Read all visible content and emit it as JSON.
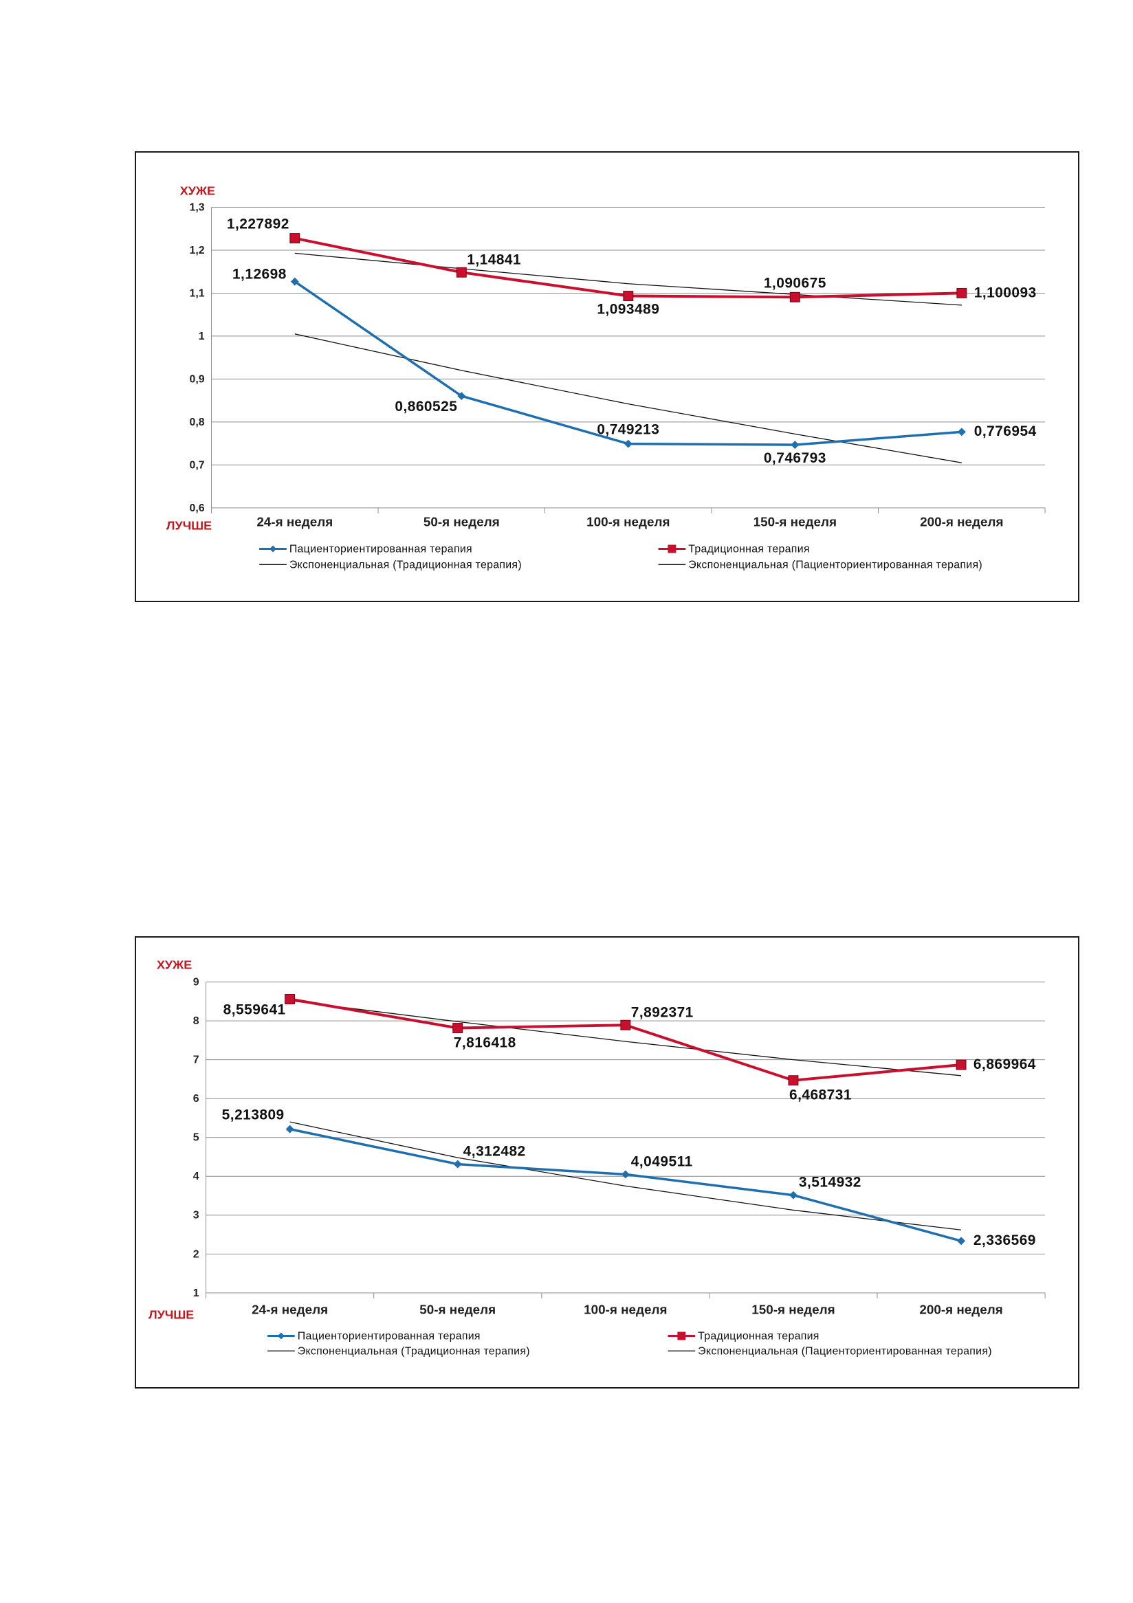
{
  "colors": {
    "patient": "#1f6fae",
    "traditional": "#c8102e",
    "trend": "#111111",
    "grid": "#8c8c8c",
    "worse_better": "#c0181e"
  },
  "chart_data": [
    {
      "type": "line",
      "title": "",
      "xlabel": "",
      "ylabel": "",
      "y_top_label": "ХУЖЕ",
      "y_bottom_label": "ЛУЧШЕ",
      "categories": [
        "24-я неделя",
        "50-я неделя",
        "100-я неделя",
        "150-я неделя",
        "200-я неделя"
      ],
      "ylim": [
        0.6,
        1.3
      ],
      "y_ticks": [
        0.6,
        0.7,
        0.8,
        0.9,
        1,
        1.1,
        1.2,
        1.3
      ],
      "y_tick_labels": [
        "0,6",
        "0,7",
        "0,8",
        "0,9",
        "1",
        "1,1",
        "1,2",
        "1,3"
      ],
      "grid": true,
      "legend_position": "bottom",
      "series": [
        {
          "name": "Пациенториентированная терапия",
          "marker": "diamond",
          "values": [
            1.12698,
            0.860525,
            0.749213,
            0.746793,
            0.776954
          ],
          "labels": [
            "1,12698",
            "0,860525",
            "0,749213",
            "0,746793",
            "0,776954"
          ],
          "label_positions": [
            "left",
            "below-left",
            "above",
            "below",
            "right"
          ]
        },
        {
          "name": "Традиционная терапия",
          "marker": "square",
          "values": [
            1.227892,
            1.14841,
            1.093489,
            1.090675,
            1.100093
          ],
          "labels": [
            "1,227892",
            "1,14841",
            "1,093489",
            "1,090675",
            "1,100093"
          ],
          "label_positions": [
            "above-left",
            "above-right",
            "below",
            "above",
            "right"
          ]
        }
      ],
      "trendlines": [
        {
          "name": "Экспоненциальная (Традиционная терапия)",
          "values": [
            1.193,
            1.157,
            1.122,
            1.097,
            1.072
          ]
        },
        {
          "name": "Экспоненциальная (Пациенторие­нтированная терапия)",
          "values": [
            1.005,
            0.92,
            0.842,
            0.772,
            0.705
          ]
        }
      ],
      "legend": [
        "Пациенториентированная терапия",
        "Традиционная терапия",
        "Экспоненциальная (Традиционная терапия)",
        "Экспоненциальная (Пациенториентированная терапия)"
      ]
    },
    {
      "type": "line",
      "title": "",
      "xlabel": "",
      "ylabel": "",
      "y_top_label": "ХУЖЕ",
      "y_bottom_label": "ЛУЧШЕ",
      "categories": [
        "24-я неделя",
        "50-я неделя",
        "100-я неделя",
        "150-я неделя",
        "200-я неделя"
      ],
      "ylim": [
        1,
        9
      ],
      "y_ticks": [
        1,
        2,
        3,
        4,
        5,
        6,
        7,
        8,
        9
      ],
      "y_tick_labels": [
        "1",
        "2",
        "3",
        "4",
        "5",
        "6",
        "7",
        "8",
        "9"
      ],
      "grid": true,
      "legend_position": "bottom",
      "series": [
        {
          "name": "Пациенториентированная терапия",
          "marker": "diamond",
          "values": [
            5.213809,
            4.312482,
            4.049511,
            3.514932,
            2.336569
          ],
          "labels": [
            "5,213809",
            "4,312482",
            "4,049511",
            "3,514932",
            "2,336569"
          ],
          "label_positions": [
            "above-left",
            "above-right",
            "above-right",
            "above-right",
            "right"
          ]
        },
        {
          "name": "Традиционная терапия",
          "marker": "square",
          "values": [
            8.559641,
            7.816418,
            7.892371,
            6.468731,
            6.869964
          ],
          "labels": [
            "8,559641",
            "7,816418",
            "7,892371",
            "6,468731",
            "6,869964"
          ],
          "label_positions": [
            "below-left",
            "below-right",
            "above-right",
            "below-right",
            "right"
          ]
        }
      ],
      "trendlines": [
        {
          "name": "Экспоненциальная (Традиционная терапия)",
          "values": [
            8.52,
            7.98,
            7.47,
            7.0,
            6.59
          ]
        },
        {
          "name": "Экспоненциальная (Пациенториентированная терапия)",
          "values": [
            5.4,
            4.48,
            3.75,
            3.13,
            2.62
          ]
        }
      ],
      "legend": [
        "Пациенториентированная терапия",
        "Традиционная терапия",
        "Экспоненциальная (Традиционная терапия)",
        "Экспоненциальная (Пациенториентированная терапия)"
      ]
    }
  ]
}
